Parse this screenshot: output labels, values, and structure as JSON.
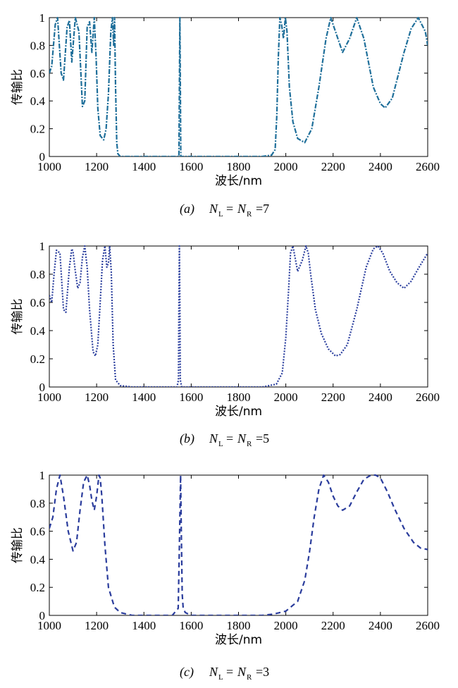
{
  "chart_data": [
    {
      "type": "line",
      "panel": "a",
      "caption_label": "(a)",
      "caption_n": "7",
      "xlabel": "波长/nm",
      "ylabel": "传输比",
      "xlim": [
        1000,
        2600
      ],
      "ylim": [
        0,
        1
      ],
      "xticks": [
        1000,
        1200,
        1400,
        1600,
        1800,
        2000,
        2200,
        2400,
        2600
      ],
      "yticks": [
        0,
        0.2,
        0.4,
        0.6,
        0.8,
        1
      ],
      "ytick_labels": [
        "0",
        "0.2",
        "0.4",
        "0.6",
        "0.8",
        "1"
      ],
      "line_color": "#1f6f9a",
      "line_style": "dash-dot",
      "grid": false,
      "series": [
        {
          "x": [
            1000,
            1010,
            1025,
            1035,
            1050,
            1060,
            1075,
            1085,
            1095,
            1110,
            1125,
            1140,
            1150,
            1160,
            1170,
            1180,
            1190,
            1198,
            1205,
            1215,
            1230,
            1240,
            1250,
            1260,
            1267,
            1272,
            1276,
            1280,
            1285,
            1290,
            1300,
            1350,
            1450,
            1540,
            1548,
            1552,
            1556,
            1560,
            1600,
            1800,
            1900,
            1940,
            1955,
            1962,
            1968,
            1975,
            1982,
            1990,
            1998,
            2005,
            2015,
            2030,
            2050,
            2080,
            2110,
            2140,
            2170,
            2190,
            2210,
            2240,
            2270,
            2300,
            2330,
            2370,
            2400,
            2420,
            2450,
            2500,
            2530,
            2560,
            2590,
            2600
          ],
          "y": [
            0.6,
            0.65,
            0.95,
            1.0,
            0.6,
            0.55,
            0.93,
            0.98,
            0.68,
            1.0,
            0.9,
            0.36,
            0.4,
            0.93,
            0.97,
            0.75,
            1.0,
            0.7,
            0.35,
            0.15,
            0.12,
            0.2,
            0.45,
            0.9,
            1.0,
            0.8,
            1.0,
            0.5,
            0.1,
            0.02,
            0.0,
            0.0,
            0.0,
            0.0,
            0.0,
            1.0,
            0.0,
            0.0,
            0.0,
            0.0,
            0.0,
            0.01,
            0.05,
            0.3,
            0.7,
            1.0,
            0.95,
            0.85,
            1.0,
            0.9,
            0.5,
            0.25,
            0.13,
            0.1,
            0.2,
            0.5,
            0.85,
            1.0,
            0.9,
            0.75,
            0.85,
            1.0,
            0.85,
            0.5,
            0.38,
            0.35,
            0.42,
            0.75,
            0.92,
            1.0,
            0.9,
            0.8
          ]
        }
      ]
    },
    {
      "type": "line",
      "panel": "b",
      "caption_label": "(b)",
      "caption_n": "5",
      "xlabel": "波长/nm",
      "ylabel": "传输比",
      "xlim": [
        1000,
        2600
      ],
      "ylim": [
        0,
        1
      ],
      "xticks": [
        1000,
        1200,
        1400,
        1600,
        1800,
        2000,
        2200,
        2400,
        2600
      ],
      "yticks": [
        0,
        0.2,
        0.4,
        0.6,
        0.8,
        1
      ],
      "ytick_labels": [
        "0",
        "0.2",
        "0.4",
        "0.6",
        "0.8",
        "1"
      ],
      "line_color": "#2b3f9e",
      "line_style": "dotted",
      "grid": false,
      "series": [
        {
          "x": [
            1000,
            1010,
            1020,
            1030,
            1045,
            1060,
            1070,
            1085,
            1095,
            1100,
            1110,
            1120,
            1130,
            1140,
            1150,
            1160,
            1170,
            1185,
            1195,
            1205,
            1215,
            1225,
            1235,
            1243,
            1250,
            1255,
            1262,
            1270,
            1280,
            1300,
            1350,
            1450,
            1540,
            1546,
            1548,
            1550,
            1552,
            1554,
            1560,
            1700,
            1900,
            1960,
            1985,
            2000,
            2012,
            2020,
            2030,
            2050,
            2070,
            2085,
            2095,
            2105,
            2125,
            2150,
            2180,
            2210,
            2230,
            2260,
            2300,
            2340,
            2370,
            2390,
            2410,
            2440,
            2470,
            2500,
            2530,
            2560,
            2600
          ],
          "y": [
            0.65,
            0.6,
            0.8,
            0.97,
            0.95,
            0.55,
            0.53,
            0.85,
            0.98,
            0.96,
            0.82,
            0.7,
            0.74,
            0.92,
            1.0,
            0.85,
            0.55,
            0.25,
            0.22,
            0.3,
            0.6,
            0.9,
            1.0,
            0.85,
            0.88,
            1.0,
            0.82,
            0.3,
            0.05,
            0.01,
            0.0,
            0.0,
            0.0,
            0.05,
            0.6,
            1.0,
            0.6,
            0.05,
            0.0,
            0.0,
            0.0,
            0.02,
            0.1,
            0.35,
            0.7,
            0.95,
            1.0,
            0.82,
            0.9,
            1.0,
            0.95,
            0.8,
            0.55,
            0.38,
            0.27,
            0.22,
            0.23,
            0.3,
            0.55,
            0.85,
            0.98,
            1.0,
            0.95,
            0.82,
            0.74,
            0.7,
            0.75,
            0.84,
            0.95
          ]
        }
      ]
    },
    {
      "type": "line",
      "panel": "c",
      "caption_label": "(c)",
      "caption_n": "3",
      "xlabel": "波长/nm",
      "ylabel": "传输比",
      "xlim": [
        1000,
        2600
      ],
      "ylim": [
        0,
        1
      ],
      "xticks": [
        1000,
        1200,
        1400,
        1600,
        1800,
        2000,
        2200,
        2400,
        2600
      ],
      "yticks": [
        0,
        0.2,
        0.4,
        0.6,
        0.8,
        1
      ],
      "ytick_labels": [
        "0",
        "0.2",
        "0.4",
        "0.6",
        "0.8",
        "1"
      ],
      "line_color": "#2a3c9c",
      "line_style": "dashed",
      "grid": false,
      "series": [
        {
          "x": [
            1000,
            1015,
            1030,
            1045,
            1060,
            1080,
            1100,
            1115,
            1130,
            1145,
            1160,
            1170,
            1180,
            1190,
            1200,
            1210,
            1215,
            1222,
            1235,
            1250,
            1275,
            1300,
            1350,
            1450,
            1520,
            1545,
            1550,
            1555,
            1558,
            1562,
            1566,
            1575,
            1600,
            1700,
            1800,
            1900,
            1950,
            2000,
            2050,
            2080,
            2100,
            2120,
            2140,
            2160,
            2180,
            2200,
            2220,
            2240,
            2270,
            2300,
            2330,
            2360,
            2380,
            2400,
            2430,
            2460,
            2500,
            2540,
            2570,
            2600
          ],
          "y": [
            0.62,
            0.7,
            0.9,
            1.0,
            0.85,
            0.6,
            0.46,
            0.52,
            0.75,
            0.95,
            1.0,
            0.93,
            0.82,
            0.75,
            0.85,
            1.0,
            0.98,
            0.85,
            0.5,
            0.2,
            0.06,
            0.02,
            0.0,
            0.0,
            0.0,
            0.05,
            0.5,
            1.0,
            0.6,
            0.15,
            0.05,
            0.02,
            0.0,
            0.0,
            0.0,
            0.0,
            0.01,
            0.03,
            0.1,
            0.25,
            0.45,
            0.7,
            0.9,
            1.0,
            0.95,
            0.85,
            0.78,
            0.75,
            0.78,
            0.88,
            0.97,
            1.0,
            1.0,
            0.98,
            0.88,
            0.76,
            0.62,
            0.52,
            0.48,
            0.47
          ]
        }
      ]
    }
  ]
}
